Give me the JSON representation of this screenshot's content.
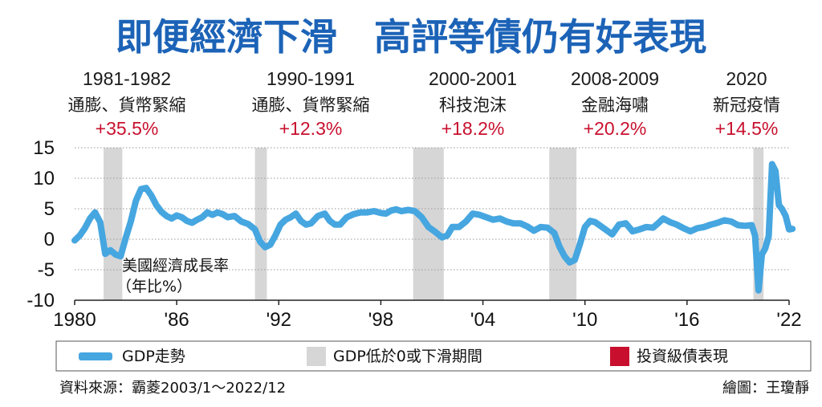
{
  "title": "即便經濟下滑　高評等債仍有好表現",
  "annotations": [
    {
      "years": "1981-1982",
      "label": "通膨、貨幣緊縮",
      "value": "+35.5%"
    },
    {
      "years": "1990-1991",
      "label": "通膨、貨幣緊縮",
      "value": "+12.3%"
    },
    {
      "years": "2000-2001",
      "label": "科技泡沫",
      "value": "+18.2%"
    },
    {
      "years": "2008-2009",
      "label": "金融海嘯",
      "value": "+20.2%"
    },
    {
      "years": "2020",
      "label": "新冠疫情",
      "value": "+14.5%"
    }
  ],
  "series_note_line1": "美國經濟成長率",
  "series_note_line2": "（年比%）",
  "legend": {
    "gdp": "GDP走勢",
    "shade": "GDP低於0或下滑期間",
    "bond": "投資級債表現"
  },
  "footer": {
    "source": "資料來源：霸菱2003/1～2022/12",
    "credit": "繪圖：王瓊靜"
  },
  "colors": {
    "line": "#46a6e0",
    "shade": "#d6d6d6",
    "title": "#1c63b7",
    "bond": "#c8102e"
  },
  "chart_data": {
    "type": "line",
    "xlim": [
      1980,
      2022
    ],
    "ylim": [
      -10,
      15
    ],
    "yticks": [
      "15",
      "10",
      "5",
      "0",
      "-5",
      "-10"
    ],
    "xticks": [
      {
        "value": 1980,
        "label": "1980"
      },
      {
        "value": 1986,
        "label": "'86"
      },
      {
        "value": 1992,
        "label": "'92"
      },
      {
        "value": 1998,
        "label": "'98"
      },
      {
        "value": 2004,
        "label": "'04"
      },
      {
        "value": 2010,
        "label": "'10"
      },
      {
        "value": 2016,
        "label": "'16"
      },
      {
        "value": 2022,
        "label": "'22"
      }
    ],
    "grid": "horizontal",
    "shaded_periods": [
      [
        1981.7,
        1982.8
      ],
      [
        1990.6,
        1991.3
      ],
      [
        1999.9,
        2001.7
      ],
      [
        2007.9,
        2009.5
      ],
      [
        2019.9,
        2020.5
      ]
    ],
    "series": [
      {
        "name": "GDP走勢",
        "x": [
          1980.0,
          1980.3,
          1980.6,
          1980.9,
          1981.2,
          1981.5,
          1981.8,
          1982.1,
          1982.4,
          1982.7,
          1983.0,
          1983.3,
          1983.6,
          1983.9,
          1984.2,
          1984.5,
          1984.8,
          1985.1,
          1985.4,
          1985.7,
          1986.0,
          1986.3,
          1986.6,
          1986.9,
          1987.2,
          1987.5,
          1987.8,
          1988.1,
          1988.4,
          1988.7,
          1989.0,
          1989.4,
          1989.8,
          1990.2,
          1990.6,
          1990.9,
          1991.2,
          1991.5,
          1991.8,
          1992.1,
          1992.4,
          1992.7,
          1993.0,
          1993.3,
          1993.6,
          1993.9,
          1994.3,
          1994.7,
          1995.0,
          1995.3,
          1995.6,
          1996.0,
          1996.4,
          1996.8,
          1997.2,
          1997.6,
          1998.0,
          1998.3,
          1998.6,
          1998.9,
          1999.2,
          1999.6,
          2000.0,
          2000.4,
          2000.8,
          2001.2,
          2001.6,
          2001.9,
          2002.2,
          2002.6,
          2003.0,
          2003.4,
          2003.8,
          2004.2,
          2004.6,
          2005.0,
          2005.4,
          2005.8,
          2006.2,
          2006.6,
          2007.0,
          2007.4,
          2007.8,
          2008.2,
          2008.5,
          2008.8,
          2009.1,
          2009.4,
          2009.7,
          2010.0,
          2010.3,
          2010.6,
          2010.9,
          2011.2,
          2011.6,
          2012.0,
          2012.4,
          2012.8,
          2013.2,
          2013.6,
          2014.0,
          2014.3,
          2014.6,
          2015.0,
          2015.4,
          2015.8,
          2016.2,
          2016.6,
          2017.0,
          2017.4,
          2017.8,
          2018.2,
          2018.6,
          2019.0,
          2019.4,
          2019.8,
          2020.0,
          2020.2,
          2020.4,
          2020.6,
          2020.8,
          2021.0,
          2021.2,
          2021.4,
          2021.6,
          2021.8,
          2022.0,
          2022.2
        ],
        "y": [
          -0.2,
          0.6,
          1.8,
          3.4,
          4.4,
          2.8,
          -2.4,
          -1.8,
          -2.5,
          -2.8,
          0.2,
          2.9,
          6.3,
          8.2,
          8.4,
          7.2,
          5.6,
          4.5,
          3.8,
          3.4,
          3.9,
          3.6,
          3.0,
          2.7,
          3.2,
          3.6,
          4.4,
          4.0,
          4.4,
          4.1,
          3.6,
          3.8,
          2.9,
          2.5,
          1.6,
          -0.4,
          -1.3,
          -0.9,
          0.6,
          2.4,
          3.2,
          3.6,
          4.2,
          3.0,
          2.4,
          2.6,
          3.8,
          4.2,
          3.0,
          2.4,
          2.4,
          3.6,
          4.1,
          4.4,
          4.4,
          4.6,
          4.3,
          4.2,
          4.7,
          4.9,
          4.6,
          4.8,
          4.6,
          3.6,
          2.0,
          1.2,
          0.3,
          0.6,
          2.0,
          2.0,
          2.9,
          4.2,
          4.0,
          3.6,
          3.2,
          3.4,
          2.9,
          2.6,
          2.6,
          2.1,
          1.4,
          2.0,
          1.9,
          1.0,
          -1.2,
          -2.8,
          -3.8,
          -3.4,
          -0.8,
          2.0,
          3.0,
          2.8,
          2.2,
          1.6,
          0.8,
          2.4,
          2.6,
          1.3,
          1.6,
          2.0,
          1.9,
          2.6,
          3.4,
          2.8,
          2.4,
          1.8,
          1.3,
          1.8,
          2.0,
          2.4,
          2.7,
          3.1,
          2.9,
          2.3,
          2.2,
          2.3,
          0.6,
          -8.4,
          -2.5,
          -1.5,
          0.5,
          12.3,
          11.2,
          5.6,
          4.9,
          3.8,
          1.6,
          1.7
        ]
      }
    ]
  }
}
